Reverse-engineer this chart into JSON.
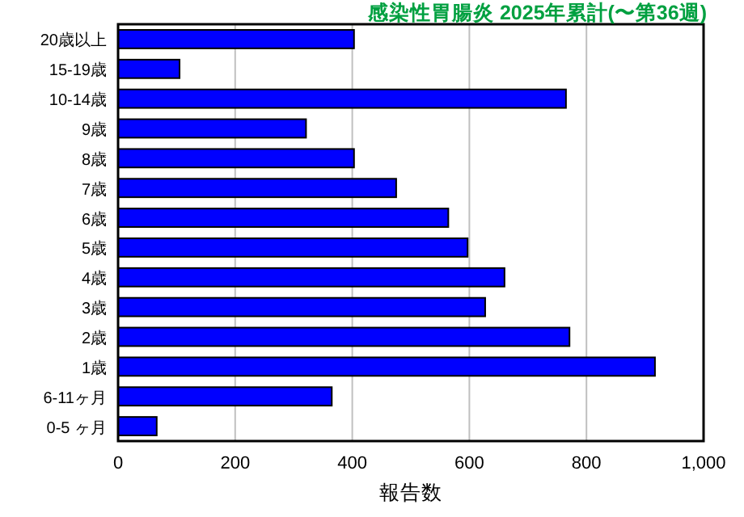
{
  "chart_data": {
    "type": "bar",
    "orientation": "horizontal",
    "title": "感染性胃腸炎 2025年累計(〜第36週)",
    "xlabel": "報告数",
    "categories": [
      "20歳以上",
      "15-19歳",
      "10-14歳",
      "9歳",
      "8歳",
      "7歳",
      "6歳",
      "5歳",
      "4歳",
      "3歳",
      "2歳",
      "1歳",
      "6-11ヶ月",
      "0-5 ヶ月"
    ],
    "values": [
      403,
      105,
      765,
      321,
      403,
      475,
      564,
      597,
      660,
      627,
      771,
      917,
      365,
      66
    ],
    "color": "#0000ff",
    "xlim": [
      0,
      1000
    ],
    "xticks": [
      0,
      200,
      400,
      600,
      800,
      {
        "value": 1000,
        "label": "1,000"
      }
    ],
    "grid": "x"
  }
}
